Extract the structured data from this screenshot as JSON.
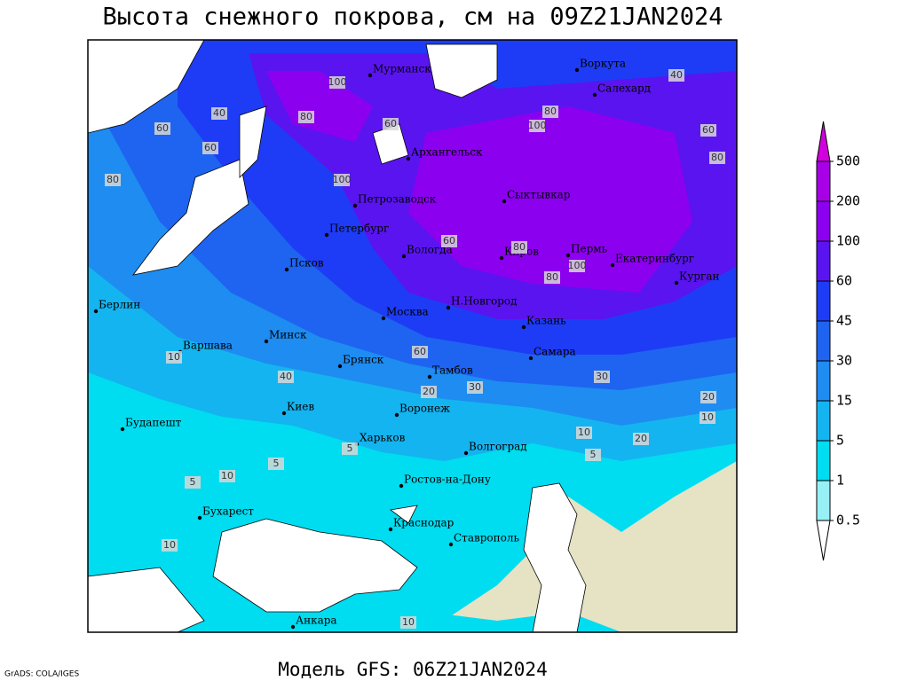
{
  "header": {
    "title": "Высота снежного покрова, см на 09Z21JAN2024",
    "subtitle": "Модель GFS: 06Z21JAN2024",
    "credit": "GrADS: COLA/IGES"
  },
  "legend": {
    "levels": [
      0.5,
      1,
      5,
      15,
      30,
      45,
      60,
      100,
      200,
      500
    ],
    "colors": [
      "#ffffff",
      "#96f0f5",
      "#00dcf0",
      "#14b4f0",
      "#1e8cf0",
      "#1e64f0",
      "#1e3cf5",
      "#5a14f0",
      "#8c00f0",
      "#a800e6",
      "#d200dc"
    ]
  },
  "cities": [
    "Мурманск",
    "Воркута",
    "Салехард",
    "Архангельск",
    "Петрозаводск",
    "Сыктывкар",
    "Петербург",
    "Вологда",
    "Киров",
    "Пермь",
    "Екатеринбург",
    "Курган",
    "Псков",
    "Берлин",
    "Москва",
    "Н.Новгород",
    "Казань",
    "Минск",
    "Варшава",
    "Брянск",
    "Самара",
    "Тамбов",
    "Киев",
    "Воронеж",
    "Будапешт",
    "Харьков",
    "Волгоград",
    "Ростов-на-Дону",
    "Бухарест",
    "Краснодар",
    "Ставрополь",
    "Анкара"
  ],
  "contour_labels": [
    80,
    60,
    40,
    60,
    100,
    80,
    60,
    100,
    80,
    40,
    60,
    80,
    100,
    60,
    80,
    100,
    80,
    60,
    40,
    20,
    30,
    30,
    20,
    10,
    20,
    10,
    10,
    10,
    5,
    10,
    5,
    5,
    10,
    5
  ]
}
